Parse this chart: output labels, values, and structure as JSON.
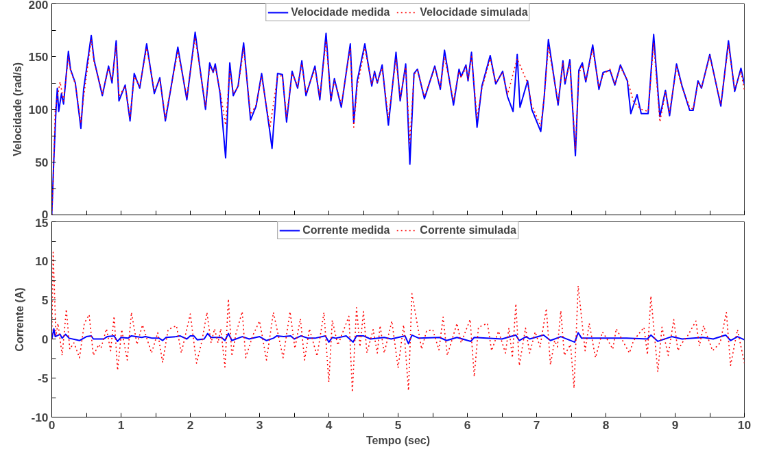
{
  "chart_data": [
    {
      "type": "line",
      "ylabel": "Velocidade (rad/s)",
      "xlim": [
        0,
        10
      ],
      "ylim": [
        0,
        200
      ],
      "xticks": [
        0,
        {
          "value": 0.5,
          "label": null
        },
        1,
        {
          "value": 1.5,
          "label": null
        },
        2,
        {
          "value": 2.5,
          "label": null
        },
        3,
        {
          "value": 3.5,
          "label": null
        },
        4,
        {
          "value": 4.5,
          "label": null
        },
        5,
        {
          "value": 5.5,
          "label": null
        },
        6,
        {
          "value": 6.5,
          "label": null
        },
        7,
        {
          "value": 7.5,
          "label": null
        },
        8,
        {
          "value": 8.5,
          "label": null
        },
        9,
        {
          "value": 9.5,
          "label": null
        },
        10
      ],
      "yticks": [
        0,
        {
          "value": 25,
          "label": null
        },
        50,
        {
          "value": 75,
          "label": null
        },
        100,
        {
          "value": 125,
          "label": null
        },
        150,
        {
          "value": 175,
          "label": null
        },
        200
      ],
      "tick_labels": "y",
      "legend": "top",
      "grid": false,
      "series": [
        {
          "name": "Velocidade medida",
          "color": "#0000ff",
          "line_style": "solid",
          "x": [
            0,
            0.03,
            0.06,
            0.08,
            0.1,
            0.14,
            0.17,
            0.24,
            0.27,
            0.34,
            0.42,
            0.46,
            0.57,
            0.61,
            0.73,
            0.82,
            0.87,
            0.93,
            0.97,
            1.06,
            1.13,
            1.19,
            1.27,
            1.37,
            1.48,
            1.56,
            1.64,
            1.82,
            1.95,
            2.07,
            2.22,
            2.28,
            2.33,
            2.36,
            2.43,
            2.51,
            2.57,
            2.62,
            2.69,
            2.77,
            2.87,
            2.95,
            3.03,
            3.15,
            3.18,
            3.26,
            3.33,
            3.39,
            3.47,
            3.55,
            3.61,
            3.67,
            3.8,
            3.87,
            3.96,
            4.03,
            4.08,
            4.18,
            4.31,
            4.36,
            4.41,
            4.52,
            4.62,
            4.66,
            4.7,
            4.77,
            4.86,
            4.97,
            5.03,
            5.11,
            5.17,
            5.23,
            5.28,
            5.38,
            5.53,
            5.61,
            5.67,
            5.8,
            5.88,
            5.91,
            5.98,
            6.01,
            6.06,
            6.14,
            6.21,
            6.33,
            6.41,
            6.51,
            6.58,
            6.66,
            6.72,
            6.76,
            6.87,
            6.93,
            7.06,
            7.11,
            7.17,
            7.31,
            7.38,
            7.41,
            7.48,
            7.56,
            7.61,
            7.66,
            7.71,
            7.81,
            7.9,
            7.96,
            8.06,
            8.13,
            8.21,
            8.31,
            8.36,
            8.45,
            8.51,
            8.61,
            8.69,
            8.74,
            8.78,
            8.86,
            8.92,
            9.02,
            9.1,
            9.21,
            9.26,
            9.33,
            9.38,
            9.5,
            9.66,
            9.77,
            9.86,
            9.95,
            10
          ],
          "values": [
            0,
            53,
            98,
            120,
            98,
            115,
            105,
            155,
            138,
            125,
            82,
            119,
            170,
            147,
            113,
            141,
            125,
            165,
            108,
            123,
            89,
            134,
            120,
            162,
            115,
            130,
            89,
            159,
            109,
            173,
            100,
            144,
            135,
            143,
            115,
            54,
            144,
            113,
            122,
            163,
            90,
            103,
            134,
            78,
            63,
            134,
            133,
            88,
            136,
            120,
            146,
            113,
            141,
            109,
            172,
            108,
            129,
            102,
            162,
            87,
            127,
            162,
            122,
            136,
            125,
            142,
            85,
            154,
            108,
            143,
            48,
            134,
            138,
            110,
            141,
            119,
            156,
            104,
            138,
            131,
            142,
            127,
            154,
            83,
            122,
            151,
            124,
            136,
            112,
            98,
            152,
            102,
            127,
            100,
            79,
            112,
            166,
            104,
            146,
            124,
            147,
            56,
            137,
            144,
            126,
            161,
            119,
            135,
            137,
            123,
            142,
            127,
            96,
            114,
            96,
            96,
            171,
            127,
            93,
            118,
            94,
            143,
            122,
            99,
            99,
            127,
            120,
            152,
            103,
            165,
            117,
            139,
            124
          ]
        },
        {
          "name": "Velocidade simulada",
          "color": "#ff0000",
          "line_style": "dotted",
          "x": [
            0,
            0.02,
            0.05,
            0.12,
            0.17,
            0.24,
            0.27,
            0.34,
            0.42,
            0.46,
            0.57,
            0.61,
            0.73,
            0.82,
            0.87,
            0.93,
            0.97,
            1.06,
            1.13,
            1.19,
            1.27,
            1.37,
            1.48,
            1.56,
            1.64,
            1.82,
            1.95,
            2.07,
            2.22,
            2.28,
            2.33,
            2.36,
            2.43,
            2.51,
            2.57,
            2.62,
            2.69,
            2.77,
            2.87,
            2.95,
            3.03,
            3.15,
            3.26,
            3.33,
            3.39,
            3.47,
            3.55,
            3.61,
            3.67,
            3.8,
            3.87,
            3.96,
            4.03,
            4.08,
            4.18,
            4.31,
            4.36,
            4.41,
            4.52,
            4.62,
            4.66,
            4.7,
            4.77,
            4.86,
            4.97,
            5.03,
            5.11,
            5.17,
            5.23,
            5.28,
            5.38,
            5.53,
            5.61,
            5.67,
            5.8,
            5.88,
            5.91,
            5.98,
            6.01,
            6.06,
            6.14,
            6.21,
            6.33,
            6.41,
            6.51,
            6.58,
            6.72,
            6.87,
            6.93,
            7.06,
            7.11,
            7.17,
            7.31,
            7.38,
            7.41,
            7.48,
            7.56,
            7.61,
            7.66,
            7.71,
            7.81,
            7.9,
            7.96,
            8.06,
            8.13,
            8.21,
            8.31,
            8.4,
            8.51,
            8.61,
            8.69,
            8.78,
            8.86,
            8.92,
            9.02,
            9.1,
            9.21,
            9.26,
            9.33,
            9.38,
            9.5,
            9.66,
            9.77,
            9.86,
            9.95,
            10
          ],
          "values": [
            0,
            30,
            100,
            126,
            108,
            150,
            137,
            124,
            87,
            112,
            166,
            145,
            115,
            139,
            127,
            160,
            112,
            122,
            92,
            131,
            122,
            158,
            118,
            128,
            92,
            155,
            112,
            168,
            103,
            140,
            136,
            140,
            117,
            85,
            137,
            115,
            121,
            158,
            95,
            104,
            131,
            83,
            131,
            132,
            92,
            134,
            122,
            143,
            115,
            138,
            112,
            165,
            110,
            127,
            105,
            158,
            83,
            122,
            158,
            124,
            134,
            126,
            139,
            92,
            148,
            111,
            140,
            68,
            133,
            137,
            112,
            139,
            121,
            150,
            108,
            136,
            130,
            140,
            128,
            150,
            92,
            120,
            148,
            125,
            135,
            114,
            148,
            125,
            104,
            84,
            112,
            160,
            107,
            144,
            126,
            143,
            62,
            134,
            142,
            127,
            157,
            121,
            133,
            138,
            124,
            140,
            128,
            107,
            100,
            98,
            163,
            88,
            116,
            97,
            140,
            121,
            102,
            100,
            125,
            121,
            150,
            105,
            161,
            119,
            136,
            118
          ]
        }
      ]
    },
    {
      "type": "line",
      "xlabel": "Tempo (sec)",
      "ylabel": "Corrente (A)",
      "xlim": [
        0,
        10
      ],
      "ylim": [
        -10,
        15
      ],
      "xticks": [
        0,
        {
          "value": 0.5,
          "label": null
        },
        1,
        {
          "value": 1.5,
          "label": null
        },
        2,
        {
          "value": 2.5,
          "label": null
        },
        3,
        {
          "value": 3.5,
          "label": null
        },
        4,
        {
          "value": 4.5,
          "label": null
        },
        5,
        {
          "value": 5.5,
          "label": null
        },
        6,
        {
          "value": 6.5,
          "label": null
        },
        7,
        {
          "value": 7.5,
          "label": null
        },
        8,
        {
          "value": 8.5,
          "label": null
        },
        9,
        {
          "value": 9.5,
          "label": null
        },
        10
      ],
      "yticks": [
        -10,
        {
          "value": -7.5,
          "label": null
        },
        -5,
        {
          "value": -2.5,
          "label": null
        },
        0,
        {
          "value": 2.5,
          "label": null
        },
        5,
        {
          "value": 7.5,
          "label": null
        },
        10,
        {
          "value": 12.5,
          "label": null
        },
        15
      ],
      "legend": "top",
      "grid": false,
      "series": [
        {
          "name": "Corrente medida",
          "color": "#0000ff",
          "line_style": "solid",
          "x": [
            0,
            0.03,
            0.05,
            0.12,
            0.15,
            0.2,
            0.25,
            0.4,
            0.5,
            0.57,
            0.6,
            0.75,
            0.8,
            0.9,
            0.95,
            1.0,
            1.1,
            1.15,
            1.3,
            1.35,
            1.45,
            1.55,
            1.6,
            1.65,
            1.8,
            1.85,
            1.95,
            2.0,
            2.05,
            2.1,
            2.2,
            2.25,
            2.3,
            2.45,
            2.5,
            2.55,
            2.6,
            2.75,
            2.85,
            3.0,
            3.1,
            3.2,
            3.25,
            3.35,
            3.45,
            3.5,
            3.6,
            3.7,
            3.8,
            3.95,
            4.0,
            4.05,
            4.1,
            4.25,
            4.35,
            4.4,
            4.5,
            4.6,
            4.8,
            4.9,
            5.0,
            5.1,
            5.15,
            5.2,
            5.3,
            5.6,
            5.7,
            5.85,
            6.05,
            6.1,
            6.5,
            6.7,
            6.75,
            6.85,
            6.9,
            7.1,
            7.2,
            7.35,
            7.55,
            7.6,
            7.65,
            8.0,
            8.3,
            8.6,
            8.65,
            8.75,
            8.95,
            9.1,
            9.4,
            9.55,
            9.73,
            9.8,
            9.9,
            10
          ],
          "values": [
            0,
            1.3,
            0.3,
            0.6,
            0.1,
            0.6,
            0.1,
            -0.2,
            0.3,
            0.4,
            0,
            0,
            0.3,
            0.4,
            -0.3,
            0.2,
            0.1,
            0.4,
            0.2,
            0.3,
            0.1,
            0.1,
            -0.2,
            0.2,
            0.3,
            0.4,
            0,
            0.4,
            0.4,
            -0.1,
            0,
            0.7,
            0.2,
            0.2,
            -0.2,
            0.7,
            -0.2,
            0.3,
            0,
            0.3,
            -0.2,
            0.1,
            0.4,
            0.3,
            0.4,
            0,
            0.4,
            0.1,
            0.1,
            0.4,
            -0.4,
            0.2,
            0.1,
            0.4,
            -0.4,
            0.4,
            0.4,
            0,
            0.2,
            0,
            0.2,
            0.4,
            -0.6,
            0.5,
            0.1,
            0.2,
            -0.2,
            0.2,
            -0.3,
            0.2,
            0,
            0.5,
            -0.2,
            0.3,
            0,
            0.5,
            -0.2,
            0.3,
            -0.4,
            0.8,
            0.1,
            0.1,
            0.1,
            0,
            0.5,
            -0.3,
            0.3,
            0,
            0.2,
            0,
            0.5,
            -0.2,
            0.3,
            -0.1
          ]
        },
        {
          "name": "Corrente simulada",
          "color": "#ff0000",
          "line_style": "dotted",
          "x": [
            0,
            0.02,
            0.06,
            0.09,
            0.15,
            0.21,
            0.26,
            0.32,
            0.4,
            0.47,
            0.54,
            0.6,
            0.68,
            0.71,
            0.79,
            0.85,
            0.9,
            0.95,
            1.01,
            1.09,
            1.15,
            1.23,
            1.31,
            1.44,
            1.53,
            1.6,
            1.68,
            1.8,
            1.87,
            2.0,
            2.09,
            2.17,
            2.24,
            2.3,
            2.35,
            2.4,
            2.44,
            2.5,
            2.55,
            2.6,
            2.66,
            2.75,
            2.8,
            2.9,
            3.0,
            3.1,
            3.2,
            3.34,
            3.44,
            3.51,
            3.59,
            3.65,
            3.72,
            3.83,
            3.93,
            4.0,
            4.05,
            4.13,
            4.29,
            4.34,
            4.4,
            4.45,
            4.5,
            4.55,
            4.64,
            4.7,
            4.74,
            4.8,
            4.91,
            5.0,
            5.08,
            5.15,
            5.2,
            5.34,
            5.41,
            5.5,
            5.59,
            5.65,
            5.71,
            5.85,
            5.91,
            6.04,
            6.1,
            6.16,
            6.29,
            6.35,
            6.45,
            6.55,
            6.6,
            6.65,
            6.7,
            6.75,
            6.84,
            6.9,
            6.98,
            7.05,
            7.14,
            7.2,
            7.26,
            7.3,
            7.35,
            7.4,
            7.49,
            7.54,
            7.6,
            7.7,
            7.76,
            7.85,
            7.95,
            8.01,
            8.1,
            8.15,
            8.34,
            8.4,
            8.55,
            8.6,
            8.65,
            8.75,
            8.81,
            8.9,
            8.98,
            9.04,
            9.1,
            9.18,
            9.3,
            9.35,
            9.41,
            9.54,
            9.65,
            9.74,
            9.8,
            9.9,
            10
          ],
          "values": [
            0,
            11.1,
            0.4,
            2.0,
            -2.1,
            3.8,
            -1.3,
            -0.5,
            -2.4,
            2.0,
            3.1,
            -2.1,
            -0.7,
            -1.2,
            1.3,
            -1.5,
            2.9,
            -4.0,
            1.2,
            -2.7,
            3.4,
            -0.7,
            1.8,
            -1.8,
            0.8,
            -3.0,
            1.2,
            1.7,
            -1.8,
            3.2,
            -3.1,
            -0.2,
            3.4,
            -0.5,
            1.3,
            -0.5,
            1.3,
            -3.6,
            5.1,
            -2.2,
            0.7,
            3.5,
            -2.4,
            0.4,
            2.3,
            -2.7,
            3.4,
            -2.4,
            3.5,
            -1.2,
            2.6,
            -2.7,
            1.3,
            -2.2,
            3.4,
            -5.5,
            2.4,
            -0.8,
            2.9,
            -6.8,
            4.0,
            -1.0,
            3.5,
            -1.8,
            1.2,
            -1.8,
            1.7,
            -1.8,
            2.3,
            -3.7,
            1.8,
            -6.6,
            5.8,
            -1.3,
            1.0,
            1.2,
            -1.4,
            2.8,
            -2.1,
            2.0,
            -0.5,
            2.5,
            -4.8,
            1.5,
            2.0,
            -1.5,
            1.0,
            -1.8,
            1.4,
            -2.4,
            4.5,
            -3.4,
            1.4,
            -1.8,
            0.9,
            -1.0,
            3.9,
            -3.3,
            -0.2,
            -1.0,
            3.6,
            -2.1,
            -0.7,
            -6.3,
            6.8,
            -1.5,
            2.0,
            -2.4,
            0.9,
            0.1,
            -1.3,
            1.3,
            -1.8,
            -0.2,
            1.5,
            -2.0,
            5.5,
            -4.2,
            1.5,
            -2.1,
            2.5,
            -1.5,
            -0.5,
            0.4,
            2.3,
            -0.9,
            1.7,
            -1.5,
            -0.5,
            3.4,
            -3.4,
            1.2,
            -3.1
          ]
        }
      ]
    }
  ]
}
